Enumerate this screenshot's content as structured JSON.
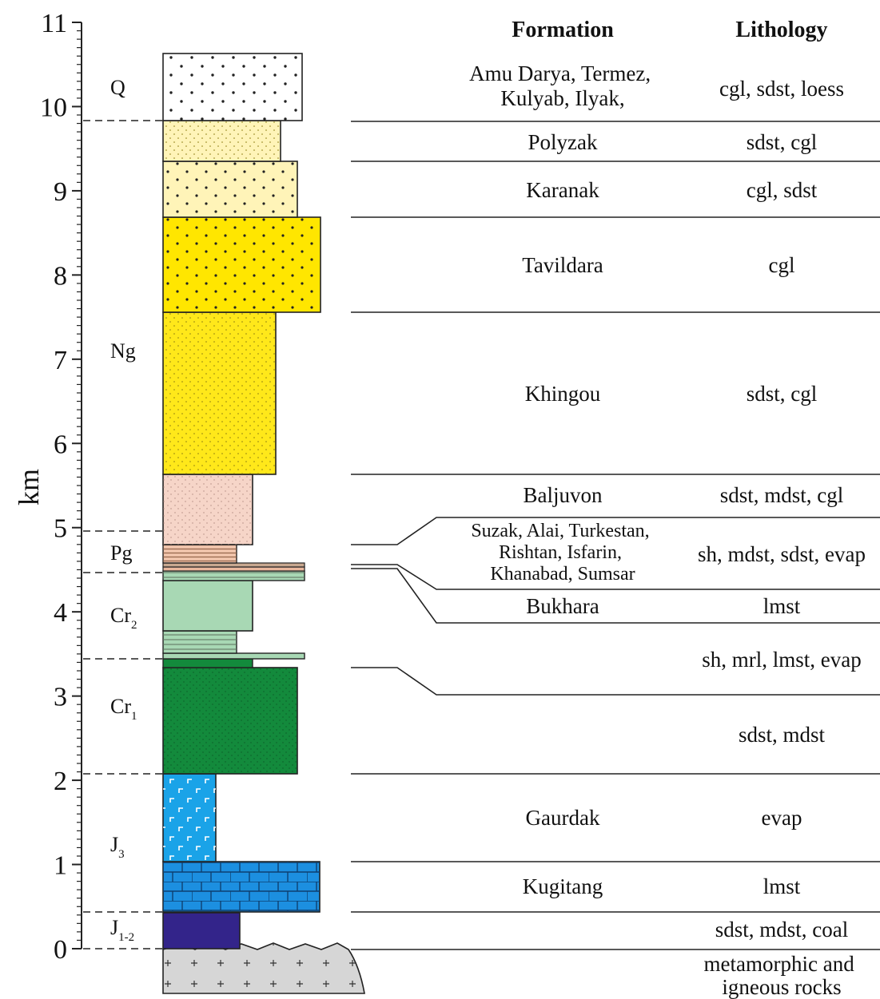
{
  "axis": {
    "title": "km",
    "ticks": [
      "0",
      "1",
      "2",
      "3",
      "4",
      "5",
      "6",
      "7",
      "8",
      "9",
      "10",
      "11"
    ]
  },
  "headers": {
    "formation": "Formation",
    "lithology": "Lithology"
  },
  "ages": {
    "q": "Q",
    "ng": "Ng",
    "pg": "Pg",
    "cr2": {
      "base": "Cr",
      "sub": "2"
    },
    "cr1": {
      "base": "Cr",
      "sub": "1"
    },
    "j3": {
      "base": "J",
      "sub": "3"
    },
    "j12": {
      "base": "J",
      "sub": "1-2"
    }
  },
  "rows": [
    {
      "formation": [
        "Amu Darya, Termez,",
        "Kulyab, Ilyak,"
      ],
      "lithology": [
        "cgl, sdst, loess"
      ]
    },
    {
      "formation": [
        "Polyzak"
      ],
      "lithology": [
        "sdst, cgl"
      ]
    },
    {
      "formation": [
        "Karanak"
      ],
      "lithology": [
        "cgl, sdst"
      ]
    },
    {
      "formation": [
        "Tavildara"
      ],
      "lithology": [
        "cgl"
      ]
    },
    {
      "formation": [
        "Khingou"
      ],
      "lithology": [
        "sdst, cgl"
      ]
    },
    {
      "formation": [
        "Baljuvon"
      ],
      "lithology": [
        "sdst, mdst, cgl"
      ]
    },
    {
      "formation": [
        "Suzak, Alai, Turkestan,",
        "Rishtan, Isfarin,",
        "Khanabad, Sumsar"
      ],
      "lithology": [
        "sh, mdst, sdst, evap"
      ]
    },
    {
      "formation": [
        "Bukhara"
      ],
      "lithology": [
        "lmst"
      ]
    },
    {
      "formation": [],
      "lithology": [
        "sh, mrl, lmst, evap"
      ]
    },
    {
      "formation": [],
      "lithology": [
        "sdst, mdst"
      ]
    },
    {
      "formation": [
        "Gaurdak"
      ],
      "lithology": [
        "evap"
      ]
    },
    {
      "formation": [
        "Kugitang"
      ],
      "lithology": [
        "lmst"
      ]
    },
    {
      "formation": [],
      "lithology": [
        "sdst, mdst, coal"
      ]
    },
    {
      "formation": [],
      "lithology": [
        "metamorphic and",
        "igneous rocks"
      ]
    }
  ],
  "colors": {
    "quaternary": "#ffffff",
    "pale_sandstone": "#fff4b8",
    "conglomerate_yellow": "#ffe600",
    "sandstone_yellow": "#ffe81a",
    "baljuvon_pink": "#f6d5c8",
    "paleogene_brown": "#efc3aa",
    "cretaceous_light_green": "#a8d8b4",
    "cretaceous_dark_green": "#138a3c",
    "evaporite_blue": "#1aa3e8",
    "limestone_blue": "#1c8fe0",
    "coal_purple": "#33248a",
    "basement_grey": "#d6d6d6"
  }
}
